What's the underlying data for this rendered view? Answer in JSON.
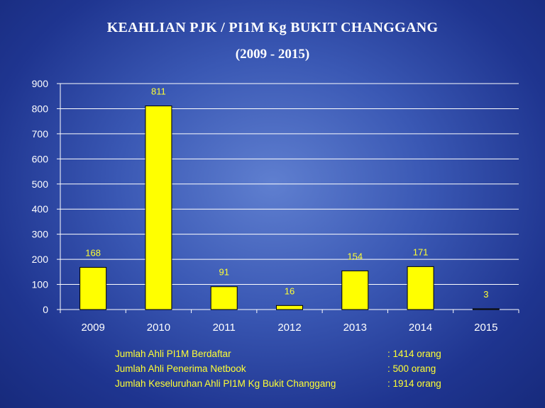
{
  "title": "KEAHLIAN PJK / PI1M Kg BUKIT CHANGGANG",
  "subtitle": "(2009 - 2015)",
  "chart_data": {
    "type": "bar",
    "categories": [
      "2009",
      "2010",
      "2011",
      "2012",
      "2013",
      "2014",
      "2015"
    ],
    "values": [
      168,
      811,
      91,
      16,
      154,
      171,
      3
    ],
    "data_labels": [
      "168",
      "811",
      "91",
      "16",
      "154",
      "171",
      "3"
    ],
    "yticks": [
      "0",
      "100",
      "200",
      "300",
      "400",
      "500",
      "600",
      "700",
      "800",
      "900"
    ],
    "ylim": [
      0,
      900
    ],
    "grid": true,
    "bar_color": "#ffff00",
    "label_color": "#ffff33"
  },
  "summary": [
    {
      "label": "Jumlah Ahli PI1M Berdaftar",
      "value": ": 1414 orang"
    },
    {
      "label": "Jumlah Ahli Penerima Netbook",
      "value": ": 500 orang"
    },
    {
      "label": "Jumlah Keseluruhan  Ahli PI1M Kg Bukit Changgang",
      "value": ": 1914 orang"
    }
  ]
}
